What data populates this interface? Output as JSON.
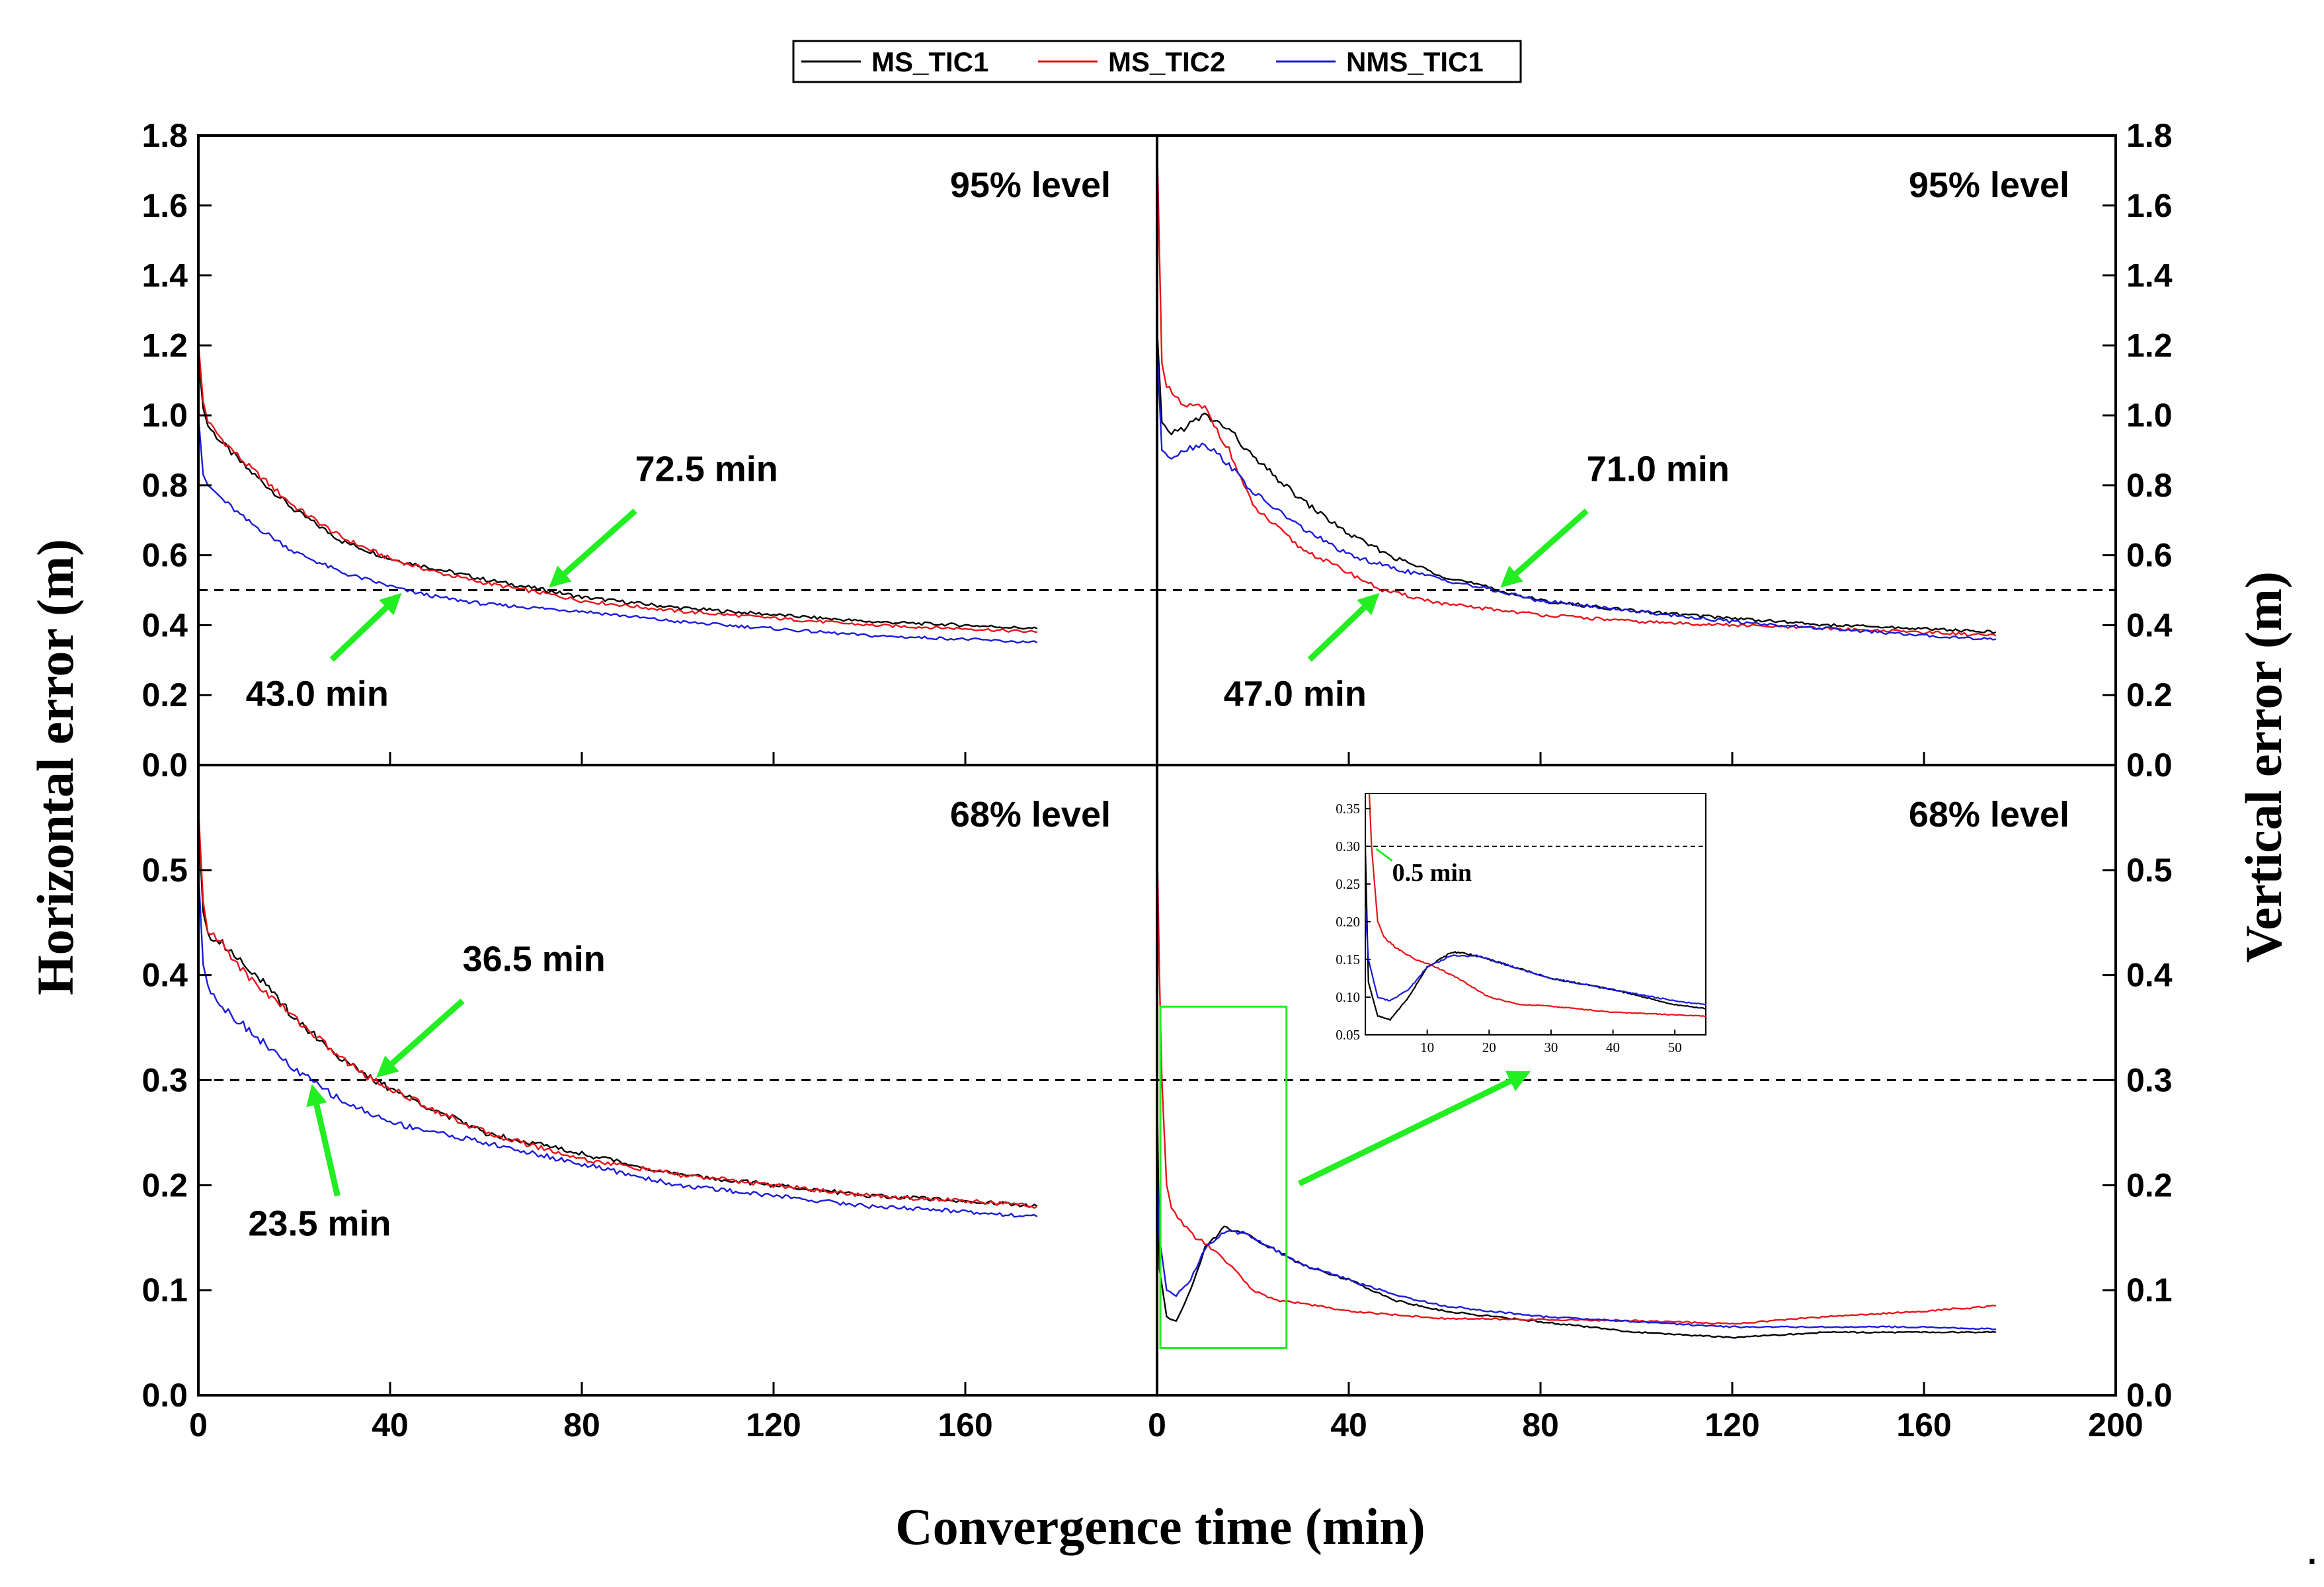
{
  "chart_data": {
    "type": "line",
    "xlabel": "Convergence time (min)",
    "left_ylabel": "Horizontal error (m)",
    "right_ylabel": "Vertical error (m)",
    "x_ticks": [
      "0",
      "40",
      "80",
      "120",
      "160"
    ],
    "x_ticks_right": [
      "0",
      "40",
      "80",
      "120",
      "160",
      "200"
    ],
    "legend": [
      {
        "name": "MS_TIC1",
        "color": "#000000"
      },
      {
        "name": "MS_TIC2",
        "color": "#e8141a"
      },
      {
        "name": "NMS_TIC1",
        "color": "#1b1bdb"
      }
    ],
    "panels": [
      {
        "id": "top-left",
        "level": "95%  level",
        "xlim": [
          0,
          200
        ],
        "ylim": [
          0,
          1.8
        ],
        "threshold": 0.5,
        "y_ticks": [
          "0.0",
          "0.2",
          "0.4",
          "0.6",
          "0.8",
          "1.0",
          "1.2",
          "1.4",
          "1.6",
          "1.8"
        ],
        "annotations": [
          {
            "text": "72.5  min",
            "x": 72.5,
            "y": 0.5
          },
          {
            "text": "43.0  min",
            "x": 43.0,
            "y": 0.5
          }
        ],
        "series": [
          {
            "name": "MS_TIC1",
            "x": [
              0,
              1,
              2,
              5,
              10,
              20,
              30,
              40,
              50,
              60,
              72.5,
              80,
              100,
              120,
              140,
              160,
              175
            ],
            "y": [
              1.17,
              1.02,
              0.97,
              0.92,
              0.85,
              0.73,
              0.64,
              0.59,
              0.56,
              0.53,
              0.5,
              0.48,
              0.45,
              0.43,
              0.41,
              0.4,
              0.39
            ]
          },
          {
            "name": "MS_TIC2",
            "x": [
              0,
              1,
              2,
              5,
              10,
              20,
              30,
              40,
              50,
              60,
              72.5,
              80,
              100,
              120,
              140,
              160,
              175
            ],
            "y": [
              1.21,
              1.04,
              0.98,
              0.93,
              0.86,
              0.74,
              0.65,
              0.59,
              0.55,
              0.52,
              0.49,
              0.47,
              0.44,
              0.42,
              0.4,
              0.39,
              0.38
            ]
          },
          {
            "name": "NMS_TIC1",
            "x": [
              0,
              1,
              2,
              5,
              10,
              20,
              30,
              43,
              50,
              60,
              70,
              80,
              100,
              120,
              140,
              160,
              175
            ],
            "y": [
              1.0,
              0.83,
              0.8,
              0.76,
              0.7,
              0.61,
              0.55,
              0.5,
              0.48,
              0.46,
              0.45,
              0.44,
              0.41,
              0.39,
              0.37,
              0.36,
              0.35
            ]
          }
        ]
      },
      {
        "id": "top-right",
        "level": "95%  level",
        "xlim": [
          0,
          200
        ],
        "ylim": [
          0,
          1.8
        ],
        "threshold": 0.5,
        "y_ticks": [
          "0.0",
          "0.2",
          "0.4",
          "0.6",
          "0.8",
          "1.0",
          "1.2",
          "1.4",
          "1.6",
          "1.8"
        ],
        "annotations": [
          {
            "text": "71.0  min",
            "x": 71.0,
            "y": 0.5
          },
          {
            "text": "47.0  min",
            "x": 47.0,
            "y": 0.5
          }
        ],
        "series": [
          {
            "name": "MS_TIC1",
            "x": [
              0,
              1,
              3,
              5,
              10,
              15,
              20,
              30,
              40,
              50,
              60,
              71,
              80,
              100,
              120,
              140,
              160,
              175
            ],
            "y": [
              1.25,
              0.98,
              0.95,
              0.96,
              1.0,
              0.96,
              0.88,
              0.76,
              0.66,
              0.59,
              0.54,
              0.5,
              0.47,
              0.44,
              0.42,
              0.4,
              0.39,
              0.38
            ]
          },
          {
            "name": "MS_TIC2",
            "x": [
              0,
              1,
              2,
              5,
              10,
              15,
              20,
              30,
              40,
              47,
              60,
              80,
              100,
              120,
              140,
              160,
              175
            ],
            "y": [
              1.78,
              1.15,
              1.08,
              1.03,
              1.02,
              0.9,
              0.74,
              0.62,
              0.55,
              0.5,
              0.46,
              0.43,
              0.41,
              0.4,
              0.39,
              0.38,
              0.37
            ]
          },
          {
            "name": "NMS_TIC1",
            "x": [
              0,
              1,
              3,
              5,
              10,
              15,
              20,
              30,
              40,
              50,
              60,
              70,
              80,
              100,
              120,
              140,
              160,
              175
            ],
            "y": [
              1.2,
              0.9,
              0.88,
              0.9,
              0.92,
              0.86,
              0.78,
              0.68,
              0.6,
              0.56,
              0.53,
              0.5,
              0.47,
              0.44,
              0.41,
              0.39,
              0.37,
              0.36
            ]
          }
        ]
      },
      {
        "id": "bottom-left",
        "level": "68%  level",
        "xlim": [
          0,
          200
        ],
        "ylim": [
          0,
          0.6
        ],
        "threshold": 0.3,
        "y_ticks": [
          "0.0",
          "0.1",
          "0.2",
          "0.3",
          "0.4",
          "0.5"
        ],
        "annotations": [
          {
            "text": "36.5  min",
            "x": 36.5,
            "y": 0.3
          },
          {
            "text": "23.5  min",
            "x": 23.5,
            "y": 0.3
          }
        ],
        "series": [
          {
            "name": "MS_TIC1",
            "x": [
              0,
              1,
              2,
              5,
              10,
              20,
              30,
              36.5,
              50,
              60,
              80,
              100,
              120,
              140,
              160,
              175
            ],
            "y": [
              0.55,
              0.46,
              0.44,
              0.43,
              0.41,
              0.36,
              0.32,
              0.3,
              0.27,
              0.25,
              0.23,
              0.21,
              0.2,
              0.19,
              0.185,
              0.18
            ]
          },
          {
            "name": "MS_TIC2",
            "x": [
              0,
              1,
              2,
              5,
              10,
              20,
              30,
              36.5,
              50,
              60,
              80,
              100,
              120,
              140,
              160,
              175
            ],
            "y": [
              0.56,
              0.47,
              0.44,
              0.43,
              0.4,
              0.36,
              0.32,
              0.3,
              0.27,
              0.25,
              0.225,
              0.21,
              0.2,
              0.19,
              0.185,
              0.18
            ]
          },
          {
            "name": "NMS_TIC1",
            "x": [
              0,
              1,
              2,
              5,
              10,
              20,
              23.5,
              30,
              40,
              50,
              60,
              80,
              100,
              120,
              140,
              160,
              175
            ],
            "y": [
              0.5,
              0.41,
              0.39,
              0.37,
              0.35,
              0.31,
              0.3,
              0.28,
              0.26,
              0.25,
              0.24,
              0.22,
              0.2,
              0.19,
              0.18,
              0.175,
              0.17
            ]
          }
        ]
      },
      {
        "id": "bottom-right",
        "level": "68%  level",
        "xlim": [
          0,
          200
        ],
        "ylim": [
          0,
          0.6
        ],
        "threshold": 0.3,
        "y_ticks": [
          "0.0",
          "0.1",
          "0.2",
          "0.3",
          "0.4",
          "0.5"
        ],
        "annotations": [],
        "series": [
          {
            "name": "MS_TIC1",
            "x": [
              0,
              0.5,
              2,
              4,
              7,
              10,
              14,
              18,
              22,
              26,
              30,
              40,
              50,
              60,
              80,
              100,
              120,
              140,
              160,
              175
            ],
            "y": [
              0.3,
              0.12,
              0.075,
              0.07,
              0.1,
              0.14,
              0.16,
              0.155,
              0.145,
              0.135,
              0.125,
              0.11,
              0.09,
              0.08,
              0.07,
              0.06,
              0.055,
              0.06,
              0.06,
              0.06
            ]
          },
          {
            "name": "MS_TIC2",
            "x": [
              0,
              0.5,
              1,
              2,
              3,
              5,
              8,
              10,
              15,
              20,
              25,
              30,
              40,
              60,
              80,
              100,
              120,
              140,
              160,
              175
            ],
            "y": [
              0.53,
              0.4,
              0.3,
              0.2,
              0.18,
              0.165,
              0.15,
              0.145,
              0.125,
              0.1,
              0.09,
              0.088,
              0.08,
              0.073,
              0.072,
              0.071,
              0.068,
              0.075,
              0.08,
              0.085
            ]
          },
          {
            "name": "NMS_TIC1",
            "x": [
              0,
              0.5,
              2,
              4,
              7,
              10,
              14,
              18,
              22,
              26,
              30,
              40,
              50,
              60,
              80,
              100,
              120,
              140,
              160,
              175
            ],
            "y": [
              0.22,
              0.15,
              0.1,
              0.095,
              0.11,
              0.14,
              0.155,
              0.155,
              0.145,
              0.135,
              0.125,
              0.11,
              0.095,
              0.085,
              0.075,
              0.07,
              0.065,
              0.065,
              0.065,
              0.063
            ]
          }
        ],
        "inset": {
          "xlim": [
            0,
            55
          ],
          "ylim": [
            0.05,
            0.37
          ],
          "threshold": 0.3,
          "x_ticks": [
            "10",
            "20",
            "30",
            "40",
            "50"
          ],
          "y_ticks": [
            "0.05",
            "0.10",
            "0.15",
            "0.20",
            "0.25",
            "0.30",
            "0.35"
          ],
          "annotation": {
            "text": "0.5  min",
            "x": 0.5,
            "y": 0.3
          },
          "source_box": {
            "x_range": [
              0,
              27
            ],
            "y_range": [
              0.045,
              0.37
            ]
          }
        }
      }
    ]
  }
}
